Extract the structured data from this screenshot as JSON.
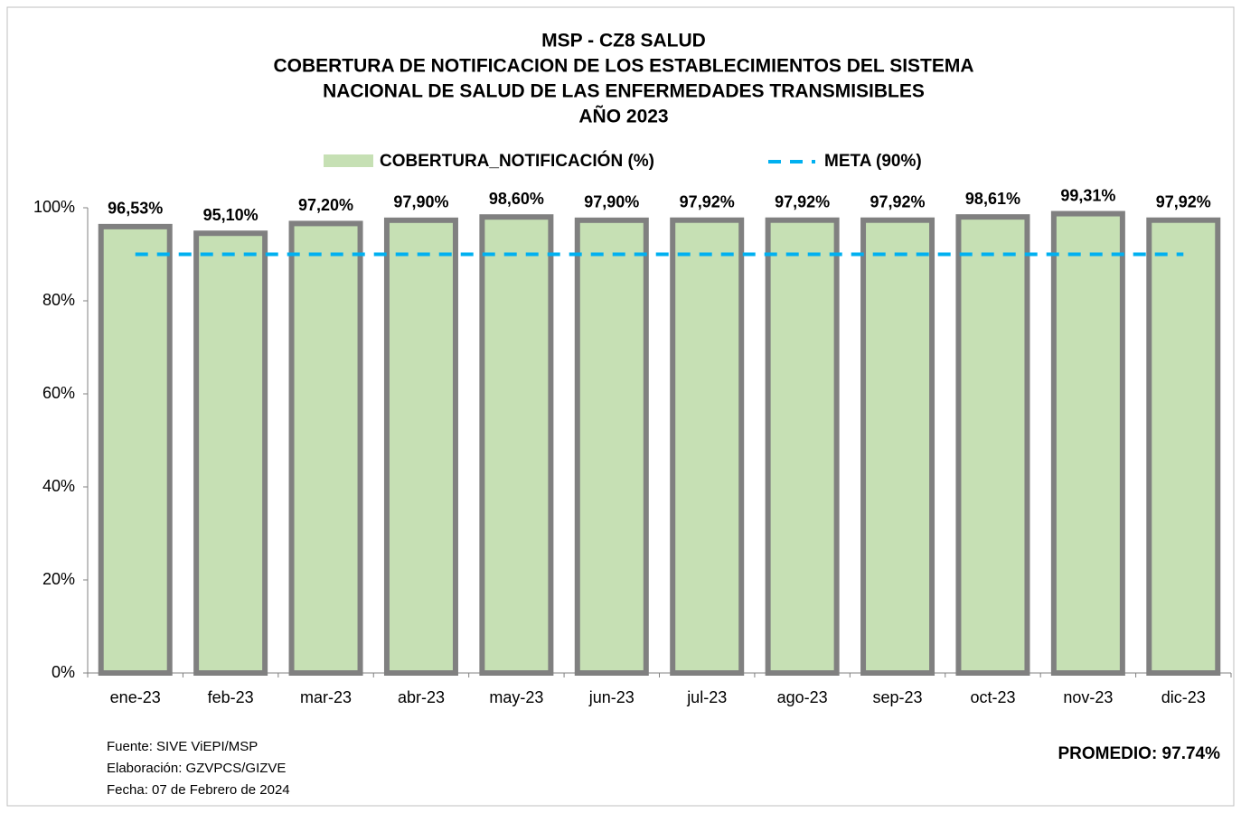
{
  "chart_data": {
    "type": "bar",
    "title": [
      "MSP - CZ8  SALUD",
      "COBERTURA DE NOTIFICACION DE LOS ESTABLECIMIENTOS DEL SISTEMA",
      "NACIONAL DE SALUD DE LAS ENFERMEDADES TRANSMISIBLES",
      "AÑO 2023"
    ],
    "categories": [
      "ene-23",
      "feb-23",
      "mar-23",
      "abr-23",
      "may-23",
      "jun-23",
      "jul-23",
      "ago-23",
      "sep-23",
      "oct-23",
      "nov-23",
      "dic-23"
    ],
    "series": [
      {
        "name": "COBERTURA_NOTIFICACIÓN (%)",
        "color": "#c6e0b4",
        "values": [
          96.53,
          95.1,
          97.2,
          97.9,
          98.6,
          97.9,
          97.92,
          97.92,
          97.92,
          98.61,
          99.31,
          97.92
        ],
        "value_labels": [
          "96,53%",
          "95,10%",
          "97,20%",
          "97,90%",
          "98,60%",
          "97,90%",
          "97,92%",
          "97,92%",
          "97,92%",
          "98,61%",
          "99,31%",
          "97,92%"
        ]
      },
      {
        "name": "META (90%)",
        "color": "#00b0f0",
        "type": "line",
        "values": [
          90,
          90,
          90,
          90,
          90,
          90,
          90,
          90,
          90,
          90,
          90,
          90
        ]
      }
    ],
    "ylim": [
      0,
      100
    ],
    "yticks": [
      {
        "value": 0,
        "label": "0%"
      },
      {
        "value": 20,
        "label": "20%"
      },
      {
        "value": 40,
        "label": "40%"
      },
      {
        "value": 60,
        "label": "60%"
      },
      {
        "value": 80,
        "label": "80%"
      },
      {
        "value": 100,
        "label": "100%"
      }
    ],
    "grid": false,
    "notes": [
      "Fuente: SIVE ViEPI/MSP",
      "Elaboración: GZVPCS/GIZVE",
      "Fecha: 07 de Febrero de 2024"
    ],
    "annotation": "PROMEDIO: 97.74%"
  }
}
